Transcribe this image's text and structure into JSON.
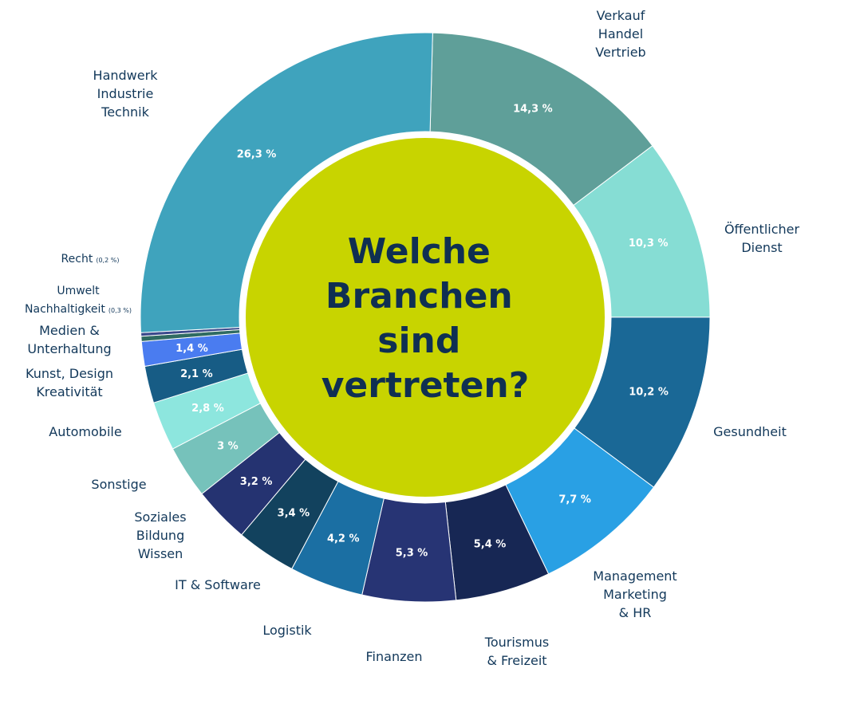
{
  "chart_data": {
    "type": "pie",
    "title": "Welche Branchen sind vertreten?",
    "title_lines": [
      "Welche",
      "Branchen",
      "sind",
      "vertreten?"
    ],
    "center_color": "#c8d400",
    "slices": [
      {
        "name": "Verkauf Handel Vertrieb",
        "lines": [
          "Verkauf",
          "Handel",
          "Vertrieb"
        ],
        "value": 14.3,
        "label": "14,3 %",
        "color": "#5f9f99"
      },
      {
        "name": "Öffentlicher Dienst",
        "lines": [
          "Öffentlicher",
          "Dienst"
        ],
        "value": 10.3,
        "label": "10,3 %",
        "color": "#86ddd4"
      },
      {
        "name": "Gesundheit",
        "lines": [
          "Gesundheit"
        ],
        "value": 10.2,
        "label": "10,2 %",
        "color": "#1a6896"
      },
      {
        "name": "Management Marketing & HR",
        "lines": [
          "Management",
          "Marketing",
          "& HR"
        ],
        "value": 7.7,
        "label": "7,7 %",
        "color": "#29a0e4"
      },
      {
        "name": "Tourismus & Freizeit",
        "lines": [
          "Tourismus",
          "& Freizeit"
        ],
        "value": 5.4,
        "label": "5,4 %",
        "color": "#172754"
      },
      {
        "name": "Finanzen",
        "lines": [
          "Finanzen"
        ],
        "value": 5.3,
        "label": "5,3 %",
        "color": "#273474"
      },
      {
        "name": "Logistik",
        "lines": [
          "Logistik"
        ],
        "value": 4.2,
        "label": "4,2 %",
        "color": "#1b6fa3"
      },
      {
        "name": "IT & Software",
        "lines": [
          "IT & Software"
        ],
        "value": 3.4,
        "label": "3,4 %",
        "color": "#12425e"
      },
      {
        "name": "Soziales Bildung Wissen",
        "lines": [
          "Soziales",
          "Bildung",
          "Wissen"
        ],
        "value": 3.2,
        "label": "3,2 %",
        "color": "#253371"
      },
      {
        "name": "Sonstige",
        "lines": [
          "Sonstige"
        ],
        "value": 3.0,
        "label": "3 %",
        "color": "#76c2bb"
      },
      {
        "name": "Automobile",
        "lines": [
          "Automobile"
        ],
        "value": 2.8,
        "label": "2,8 %",
        "color": "#8de6de"
      },
      {
        "name": "Kunst, Design Kreativität",
        "lines": [
          "Kunst, Design",
          "Kreativität"
        ],
        "value": 2.1,
        "label": "2,1 %",
        "color": "#175c85"
      },
      {
        "name": "Medien & Unterhaltung",
        "lines": [
          "Medien &",
          "Unterhaltung"
        ],
        "value": 1.4,
        "label": "1,4 %",
        "color": "#4a7cf0"
      },
      {
        "name": "Umwelt Nachhaltigkeit",
        "lines": [
          "Umwelt",
          "Nachhaltigkeit"
        ],
        "value": 0.3,
        "label": "(0,3 %)",
        "color": "#2f6b62"
      },
      {
        "name": "Recht",
        "lines": [
          "Recht"
        ],
        "value": 0.2,
        "label": "(0,2 %)",
        "color": "#3b4a8c"
      },
      {
        "name": "Handwerk Industrie Technik",
        "lines": [
          "Handwerk",
          "Industrie",
          "Technik"
        ],
        "value": 26.3,
        "label": "26,3 %",
        "color": "#3fa3bd"
      }
    ]
  }
}
